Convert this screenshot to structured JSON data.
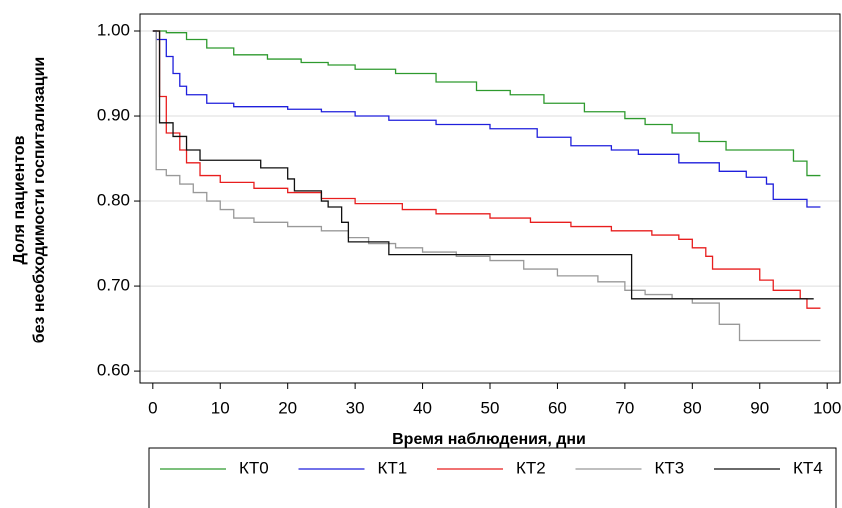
{
  "chart_data": {
    "type": "step",
    "xlabel": "Время наблюдения, дни",
    "ylabel": [
      "Доля пациентов",
      "без необходимости госпитализации"
    ],
    "xlim": [
      -1.9,
      101.9
    ],
    "ylim": [
      0.586,
      1.02
    ],
    "xticks": [
      0,
      10,
      20,
      30,
      40,
      50,
      60,
      70,
      80,
      90,
      100
    ],
    "yticks": [
      {
        "value": 0.6,
        "label": "0.60"
      },
      {
        "value": 0.7,
        "label": "0.70"
      },
      {
        "value": 0.8,
        "label": "0.80"
      },
      {
        "value": 0.9,
        "label": "0.90"
      },
      {
        "value": 1.0,
        "label": "1.00"
      }
    ],
    "grid": true,
    "legend": "bottom",
    "series": [
      {
        "name": "КТ0",
        "color": "#2e9a2e",
        "x": [
          0,
          2,
          5,
          8,
          12,
          17,
          22,
          26,
          30,
          36,
          42,
          48,
          53,
          58,
          64,
          70,
          73,
          77,
          81,
          85,
          95,
          97,
          99
        ],
        "values": [
          1.0,
          0.998,
          0.99,
          0.98,
          0.972,
          0.967,
          0.963,
          0.96,
          0.955,
          0.95,
          0.94,
          0.93,
          0.925,
          0.915,
          0.905,
          0.897,
          0.89,
          0.88,
          0.87,
          0.86,
          0.847,
          0.83,
          0.83
        ]
      },
      {
        "name": "КТ1",
        "color": "#1f1fdc",
        "x": [
          0,
          0.5,
          2,
          3,
          4,
          5,
          8,
          12,
          20,
          25,
          30,
          35,
          42,
          50,
          57,
          62,
          68,
          72,
          78,
          84,
          88,
          91,
          92,
          97,
          99
        ],
        "values": [
          1.0,
          0.99,
          0.97,
          0.95,
          0.935,
          0.925,
          0.915,
          0.911,
          0.908,
          0.905,
          0.9,
          0.895,
          0.89,
          0.885,
          0.875,
          0.865,
          0.86,
          0.855,
          0.845,
          0.835,
          0.828,
          0.82,
          0.802,
          0.793,
          0.793
        ]
      },
      {
        "name": "КТ2",
        "color": "#e81e1e",
        "x": [
          0,
          1,
          2,
          4,
          5,
          7,
          10,
          15,
          20,
          25,
          30,
          37,
          42,
          50,
          56,
          62,
          68,
          74,
          78,
          80,
          82,
          83,
          90,
          92,
          96,
          97,
          99
        ],
        "values": [
          1.0,
          0.923,
          0.88,
          0.86,
          0.845,
          0.83,
          0.822,
          0.815,
          0.81,
          0.803,
          0.797,
          0.79,
          0.785,
          0.78,
          0.775,
          0.77,
          0.765,
          0.76,
          0.755,
          0.745,
          0.735,
          0.72,
          0.707,
          0.695,
          0.685,
          0.674,
          0.674
        ]
      },
      {
        "name": "КТ3",
        "color": "#999999",
        "x": [
          0,
          0.5,
          2,
          4,
          6,
          8,
          10,
          12,
          15,
          20,
          25,
          29,
          32,
          36,
          40,
          45,
          50,
          55,
          60,
          66,
          70,
          73,
          77,
          80,
          84,
          87,
          99
        ],
        "values": [
          1.0,
          0.837,
          0.83,
          0.82,
          0.81,
          0.8,
          0.79,
          0.78,
          0.775,
          0.77,
          0.765,
          0.757,
          0.75,
          0.745,
          0.74,
          0.735,
          0.73,
          0.72,
          0.712,
          0.705,
          0.695,
          0.69,
          0.685,
          0.68,
          0.655,
          0.636,
          0.636
        ]
      },
      {
        "name": "КТ4",
        "color": "#111111",
        "x": [
          0,
          1,
          3,
          5,
          7,
          16,
          20,
          21,
          25,
          26,
          28,
          29,
          35,
          71,
          98
        ],
        "values": [
          1.0,
          0.892,
          0.876,
          0.86,
          0.848,
          0.839,
          0.826,
          0.812,
          0.8,
          0.793,
          0.775,
          0.752,
          0.737,
          0.685,
          0.685
        ]
      }
    ]
  }
}
